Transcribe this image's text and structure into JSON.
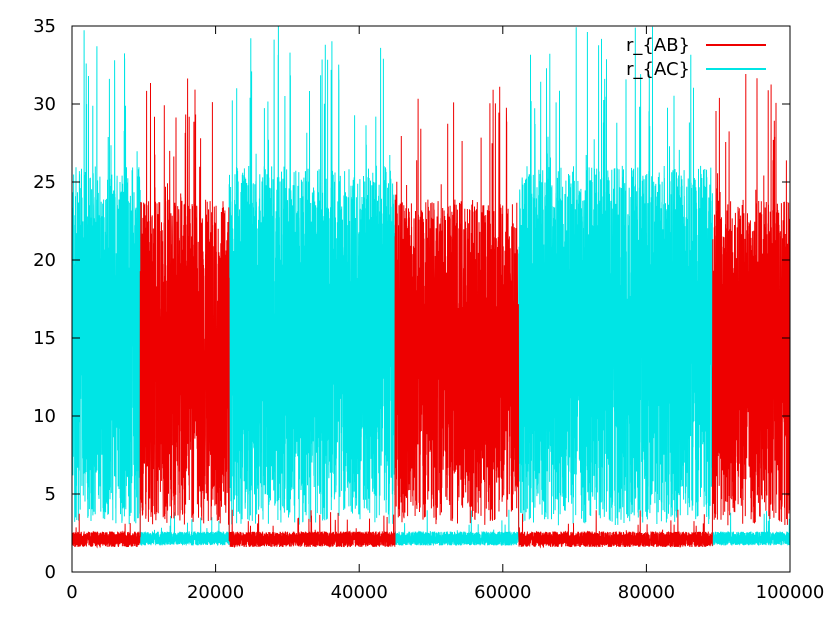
{
  "chart_data": {
    "type": "line",
    "title": "",
    "xlabel": "",
    "ylabel": "",
    "xlim": [
      0,
      100000
    ],
    "ylim": [
      0,
      35
    ],
    "xticks": [
      0,
      20000,
      40000,
      60000,
      80000,
      100000
    ],
    "xtick_labels": [
      "0",
      "20000",
      "40000",
      "60000",
      "80000",
      "100000"
    ],
    "yticks": [
      0,
      5,
      10,
      15,
      20,
      25,
      30,
      35
    ],
    "ytick_labels": [
      "0",
      "5",
      "10",
      "15",
      "20",
      "25",
      "30",
      "35"
    ],
    "grid": false,
    "legend_position": "top-right",
    "colors": {
      "r_AB": "#ee0000",
      "r_AC": "#00e5e5"
    },
    "series": [
      {
        "name": "r_{AB}",
        "color": "#ee0000",
        "description": "bound (~2.1) when segment state is low, large fluctuations 3-30 when segment state is high",
        "high_segments": [
          [
            9500,
            21900
          ],
          [
            45000,
            62200
          ],
          [
            89200,
            100000
          ]
        ],
        "low_band": [
          1.6,
          2.6
        ],
        "high_band": [
          3,
          32
        ],
        "values": [
          [
            0,
            2.1
          ],
          [
            9400,
            2.1
          ],
          [
            9500,
            14
          ],
          [
            12000,
            18
          ],
          [
            15000,
            12
          ],
          [
            18000,
            20
          ],
          [
            21000,
            15
          ],
          [
            21900,
            2.1
          ],
          [
            45000,
            2.1
          ],
          [
            45100,
            13
          ],
          [
            48000,
            20
          ],
          [
            52000,
            14
          ],
          [
            56000,
            18
          ],
          [
            60000,
            12
          ],
          [
            62200,
            2.1
          ],
          [
            89200,
            2.1
          ],
          [
            89300,
            15
          ],
          [
            93000,
            20
          ],
          [
            97000,
            14
          ],
          [
            100000,
            2.2
          ]
        ]
      },
      {
        "name": "r_{AC}",
        "color": "#00e5e5",
        "description": "bound (~2.1) when r_AB is high, large fluctuations 3-35 otherwise",
        "high_segments": [
          [
            0,
            9500
          ],
          [
            21900,
            45000
          ],
          [
            62200,
            89200
          ]
        ],
        "low_band": [
          1.7,
          2.6
        ],
        "high_band": [
          3,
          35
        ],
        "values": [
          [
            0,
            14
          ],
          [
            3000,
            20
          ],
          [
            6000,
            13
          ],
          [
            9400,
            16
          ],
          [
            9500,
            2.1
          ],
          [
            21900,
            2.1
          ],
          [
            22000,
            15
          ],
          [
            28000,
            18
          ],
          [
            34000,
            13
          ],
          [
            40000,
            17
          ],
          [
            45000,
            2.1
          ],
          [
            62200,
            2.1
          ],
          [
            62300,
            15
          ],
          [
            68000,
            19
          ],
          [
            74000,
            13
          ],
          [
            80000,
            17
          ],
          [
            89200,
            2.1
          ],
          [
            100000,
            2.1
          ]
        ]
      }
    ]
  }
}
